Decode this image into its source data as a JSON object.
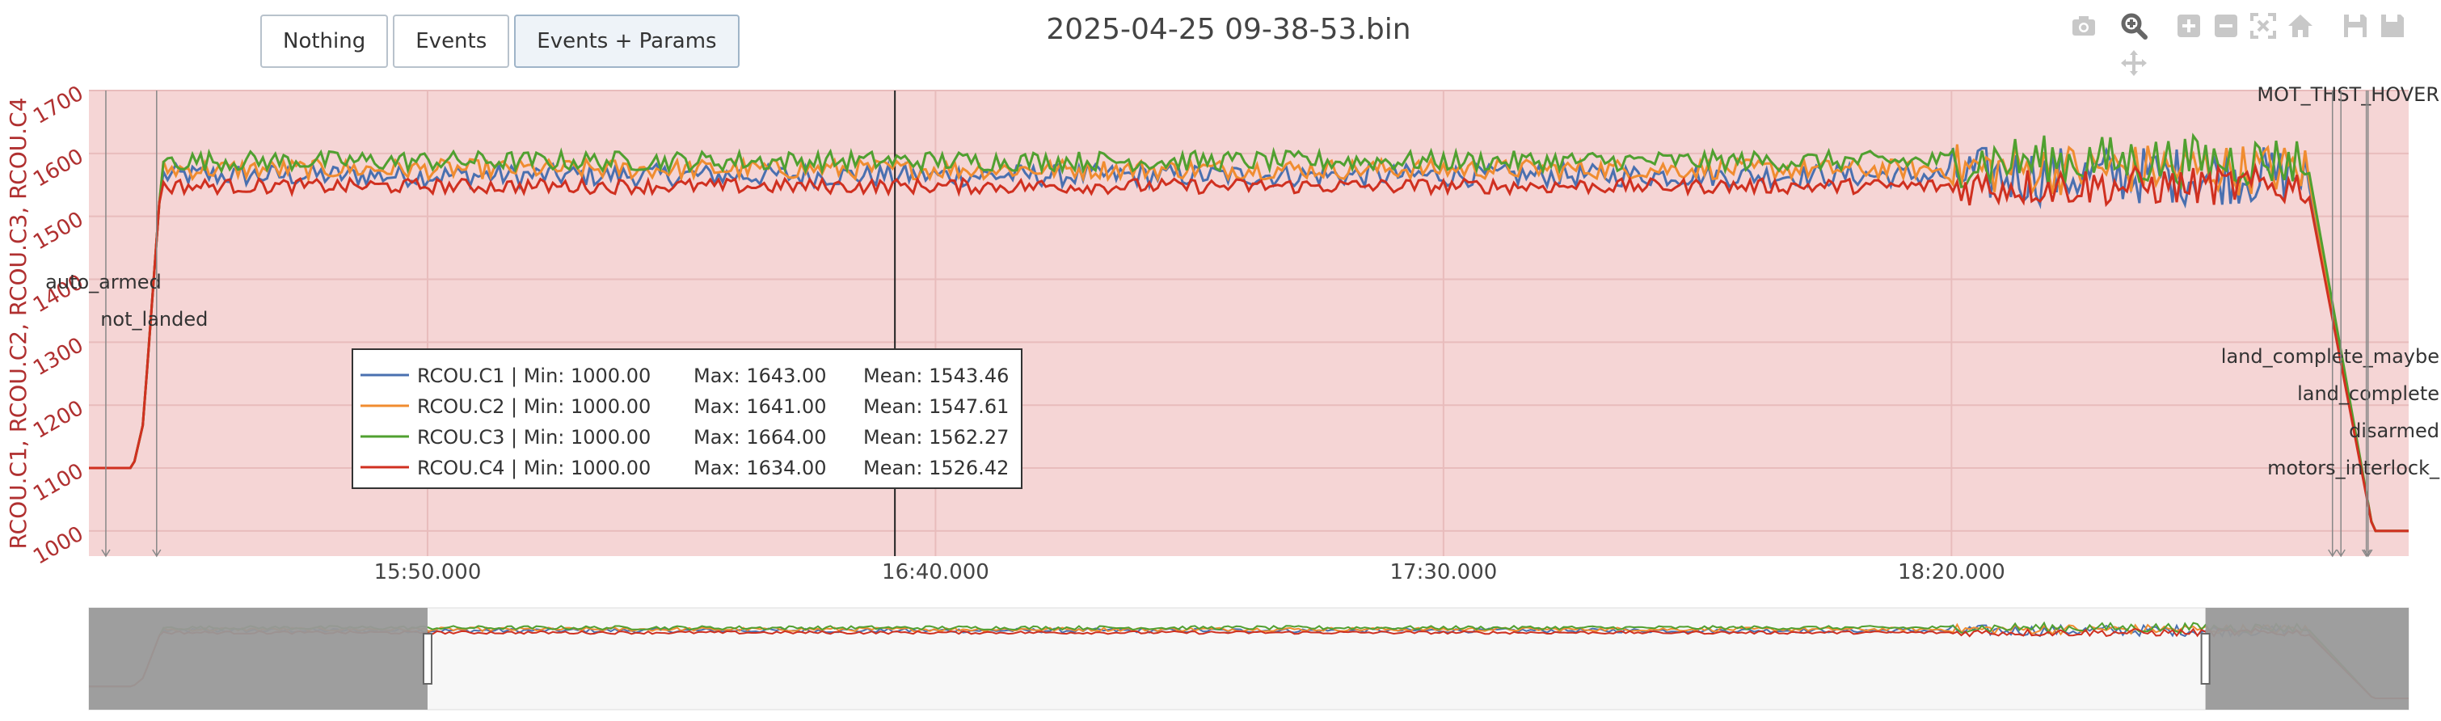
{
  "buttons": [
    {
      "label": "Nothing",
      "active": false
    },
    {
      "label": "Events",
      "active": false
    },
    {
      "label": "Events + Params",
      "active": true
    }
  ],
  "title": "2025-04-25 09-38-53.bin",
  "modebar": [
    "camera-icon",
    "zoom-icon",
    "zoom-in-icon",
    "zoom-out-icon",
    "autoscale-icon",
    "home-icon",
    "save-icon",
    "save-alt-icon",
    "pan-icon"
  ],
  "colors": {
    "plot_bg": "#f5d5d5",
    "axis_text": "#b03030",
    "c1": "#4a70b0",
    "c2": "#f08c30",
    "c3": "#50a030",
    "c4": "#d03020",
    "grid": "#e8bcbc",
    "range_shade": "#999999"
  },
  "chart_data": {
    "type": "line",
    "ylabel": "RCOU.C1, RCOU.C2, RCOU.C3, RCOU.C4",
    "ylim": [
      960,
      1700
    ],
    "yticks": [
      1000,
      1100,
      1200,
      1300,
      1400,
      1500,
      1600,
      1700
    ],
    "xlim": [
      "15:16:40",
      "19:05:00"
    ],
    "xticks": [
      {
        "t": "15:50:00",
        "label": "15:50.000"
      },
      {
        "t": "16:40:00",
        "label": "16:40.000"
      },
      {
        "t": "17:30:00",
        "label": "17:30.000"
      },
      {
        "t": "18:20:00",
        "label": "18:20.000"
      }
    ],
    "cursor_time": "16:36:00",
    "series": [
      {
        "name": "RCOU.C1",
        "min": "1000.00",
        "max": "1643.00",
        "mean": "1543.46",
        "level": 1565,
        "ampl": 18
      },
      {
        "name": "RCOU.C2",
        "min": "1000.00",
        "max": "1641.00",
        "mean": "1547.61",
        "level": 1575,
        "ampl": 16
      },
      {
        "name": "RCOU.C3",
        "min": "1000.00",
        "max": "1664.00",
        "mean": "1562.27",
        "level": 1588,
        "ampl": 16
      },
      {
        "name": "RCOU.C4",
        "min": "1000.00",
        "max": "1634.00",
        "mean": "1526.42",
        "level": 1548,
        "ampl": 12
      }
    ],
    "events": [
      {
        "label": "auto_armed",
        "t": "15:18:20"
      },
      {
        "label": "not_landed",
        "t": "15:23:20"
      },
      {
        "label": "MOT_THST_HOVER",
        "t": "19:01:00"
      },
      {
        "label": "land_complete_maybe",
        "t": "18:57:30"
      },
      {
        "label": "land_complete",
        "t": "18:58:20"
      },
      {
        "label": "disarmed",
        "t": "19:00:50"
      },
      {
        "label": "motors_interlock_",
        "t": "19:01:00"
      }
    ],
    "legend_placement": "center-left",
    "rangeslider": {
      "range": [
        "15:50:00",
        "18:45:00"
      ]
    }
  }
}
